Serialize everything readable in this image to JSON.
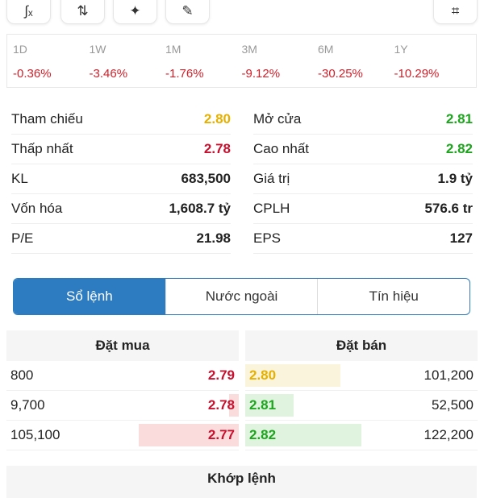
{
  "toolbar": {
    "buttons": [
      {
        "icon": "function-icon",
        "glyph": "∫ₓ"
      },
      {
        "icon": "compare-icon",
        "glyph": "⇅"
      },
      {
        "icon": "ai-sparkle-icon",
        "glyph": "✦"
      },
      {
        "icon": "pencil-icon",
        "glyph": "✎"
      },
      {
        "icon": "screenshot-icon",
        "glyph": "⌗"
      }
    ]
  },
  "periods": [
    {
      "label": "1D",
      "value": "-0.36%"
    },
    {
      "label": "1W",
      "value": "-3.46%"
    },
    {
      "label": "1M",
      "value": "-1.76%"
    },
    {
      "label": "3M",
      "value": "-9.12%"
    },
    {
      "label": "6M",
      "value": "-30.25%"
    },
    {
      "label": "1Y",
      "value": "-10.29%"
    }
  ],
  "stats": [
    {
      "label": "Tham chiếu",
      "value": "2.80",
      "color": "#e6b000"
    },
    {
      "label": "Mở cửa",
      "value": "2.81",
      "color": "#1ea51e"
    },
    {
      "label": "Thấp nhất",
      "value": "2.78",
      "color": "#c8102e"
    },
    {
      "label": "Cao nhất",
      "value": "2.82",
      "color": "#1ea51e"
    },
    {
      "label": "KL",
      "value": "683,500",
      "color": "#222"
    },
    {
      "label": "Giá trị",
      "value": "1.9 tỷ",
      "color": "#222"
    },
    {
      "label": "Vốn hóa",
      "value": "1,608.7 tỷ",
      "color": "#222"
    },
    {
      "label": "CPLH",
      "value": "576.6 tr",
      "color": "#222"
    },
    {
      "label": "P/E",
      "value": "21.98",
      "color": "#222"
    },
    {
      "label": "EPS",
      "value": "127",
      "color": "#222"
    }
  ],
  "tabs": [
    "Sổ lệnh",
    "Nước ngoài",
    "Tín hiệu"
  ],
  "orderbook": {
    "buy_title": "Đặt mua",
    "sell_title": "Đặt bán",
    "buy": [
      {
        "vol": "800",
        "price": "2.79",
        "fill": 0
      },
      {
        "vol": "9,700",
        "price": "2.78",
        "fill": 0.04
      },
      {
        "vol": "105,100",
        "price": "2.77",
        "fill": 0.43
      }
    ],
    "sell": [
      {
        "vol": "101,200",
        "price": "2.80",
        "fill": 0.41,
        "color": "#e6b000",
        "bg": "#faf4dc"
      },
      {
        "vol": "52,500",
        "price": "2.81",
        "fill": 0.21,
        "color": "#1ea51e",
        "bg": "#dff3df"
      },
      {
        "vol": "122,200",
        "price": "2.82",
        "fill": 0.5,
        "color": "#1ea51e",
        "bg": "#dff3df"
      }
    ]
  },
  "matched_title": "Khớp lệnh"
}
